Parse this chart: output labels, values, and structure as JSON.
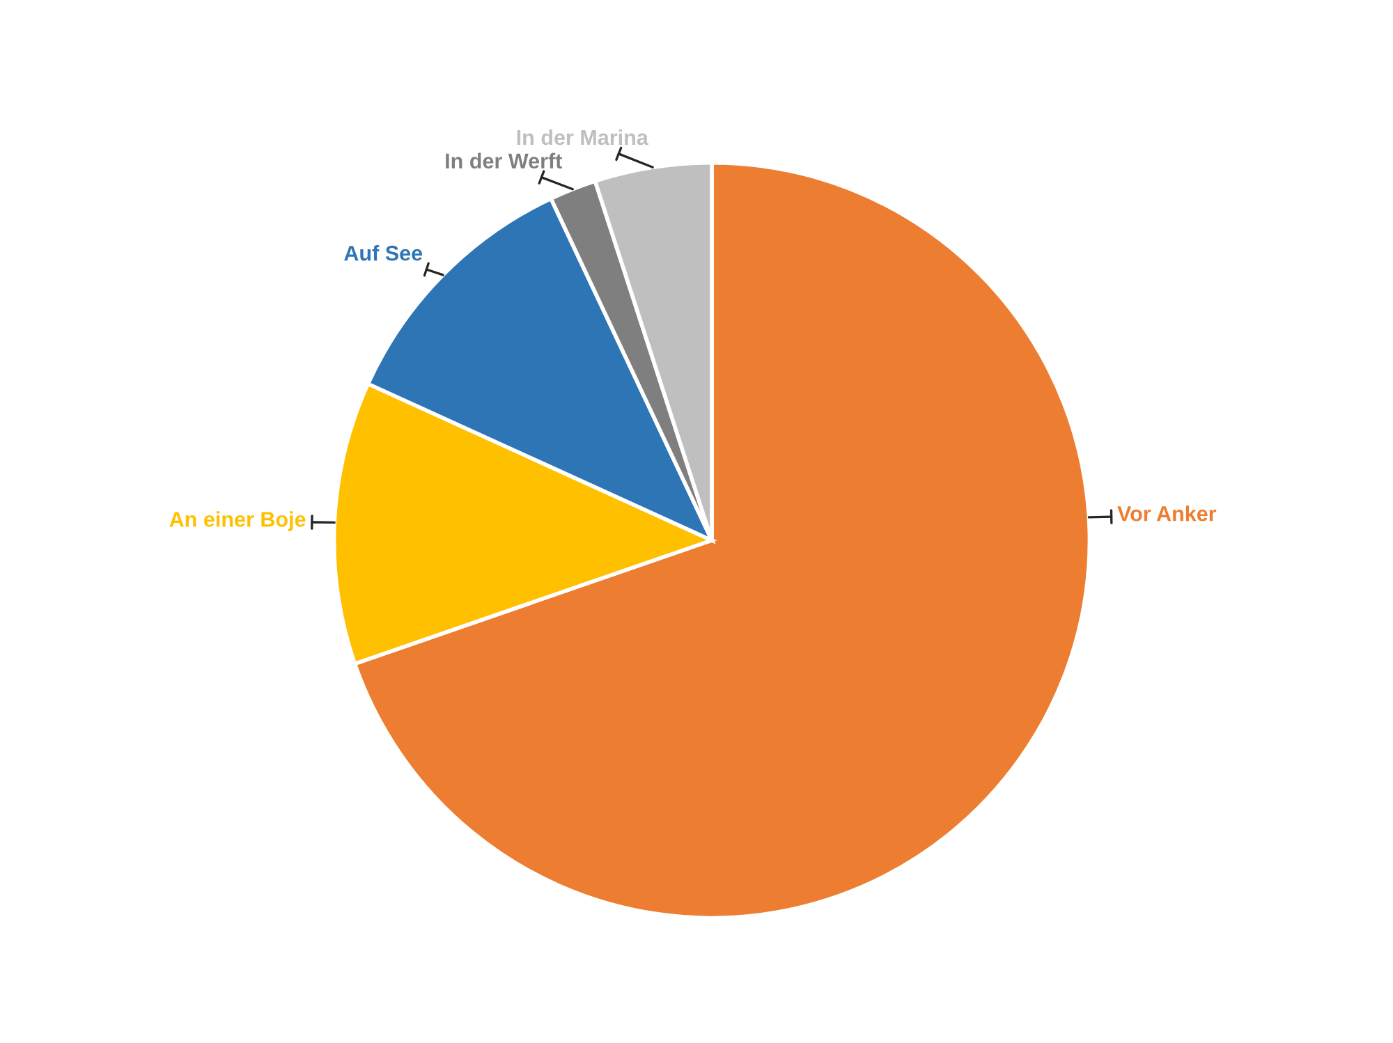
{
  "chart_data": {
    "type": "pie",
    "categories": [
      "Vor Anker",
      "An einer Boje",
      "Auf See",
      "In der Werft",
      "In der Marina"
    ],
    "values": [
      69.7,
      12.1,
      11.2,
      2.0,
      5.0
    ],
    "colors": [
      "#ed7d31",
      "#ffc000",
      "#2e75b6",
      "#7f7f7f",
      "#bfbfbf"
    ]
  }
}
